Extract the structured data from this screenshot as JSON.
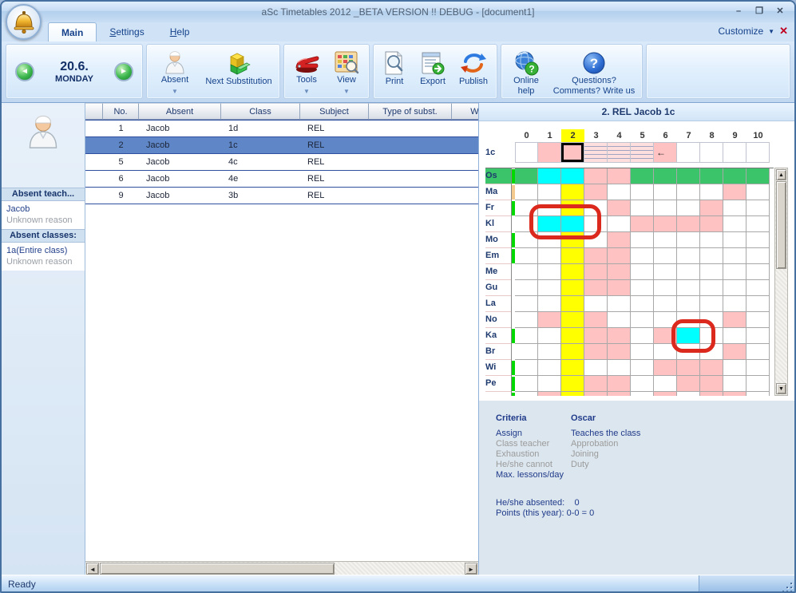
{
  "window": {
    "title": "aSc Timetables 2012 _BETA VERSION !! DEBUG - [document1]",
    "controls": {
      "minimize": "–",
      "maximize": "❐",
      "close": "✕"
    }
  },
  "tabs": {
    "items": [
      {
        "label": "Main",
        "active": true
      },
      {
        "label": "Settings",
        "active": false
      },
      {
        "label": "Help",
        "active": false
      }
    ],
    "customize_label": "Customize",
    "close_label": "✕"
  },
  "ribbon": {
    "date": {
      "day": "20.6.",
      "weekday": "MONDAY"
    },
    "buttons": [
      {
        "label": "Absent",
        "icon": "absent-person-icon",
        "caret": true
      },
      {
        "label": "Next Substitution",
        "icon": "next-substitution-blocks-icon",
        "caret": false
      },
      {
        "label": "Tools",
        "icon": "stapler-icon",
        "caret": true
      },
      {
        "label": "View",
        "icon": "calendar-magnifier-icon",
        "caret": true
      },
      {
        "label": "Print",
        "icon": "print-preview-icon",
        "caret": false
      },
      {
        "label": "Export",
        "icon": "export-icon",
        "caret": false
      },
      {
        "label": "Publish",
        "icon": "publish-sync-icon",
        "caret": false
      },
      {
        "label": "Online help",
        "icon": "globe-help-icon",
        "caret": false
      },
      {
        "label": "Questions? Comments? Write us",
        "icon": "question-icon",
        "caret": false
      }
    ]
  },
  "sidebar": {
    "teachers_header": "Absent teach...",
    "teacher_name": "Jacob",
    "teacher_reason": "Unknown reason",
    "classes_header": "Absent classes:",
    "class_name": "1a(Entire class)",
    "class_reason": "Unknown reason"
  },
  "table": {
    "columns": [
      "",
      "No.",
      "Absent",
      "Class",
      "Subject",
      "Type of subst.",
      "Who"
    ],
    "selected_index": 1,
    "rows": [
      {
        "no": "1",
        "absent": "Jacob",
        "class": "1d",
        "subject": "REL",
        "type": "",
        "who": ""
      },
      {
        "no": "2",
        "absent": "Jacob",
        "class": "1c",
        "subject": "REL",
        "type": "",
        "who": ""
      },
      {
        "no": "5",
        "absent": "Jacob",
        "class": "4c",
        "subject": "REL",
        "type": "",
        "who": ""
      },
      {
        "no": "6",
        "absent": "Jacob",
        "class": "4e",
        "subject": "REL",
        "type": "",
        "who": ""
      },
      {
        "no": "9",
        "absent": "Jacob",
        "class": "3b",
        "subject": "REL",
        "type": "",
        "who": ""
      }
    ]
  },
  "panel": {
    "title": "2. REL Jacob 1c",
    "hours": [
      "0",
      "1",
      "2",
      "3",
      "4",
      "5",
      "6",
      "7",
      "8",
      "9",
      "10"
    ],
    "selected_hour": "2",
    "target_label": "1c",
    "target_cells": [
      "W",
      "P",
      "SEL",
      "S",
      "S",
      "S",
      "A",
      "W",
      "W",
      "W",
      "W"
    ],
    "arrow_glyph": "←",
    "grid": {
      "legend": {
        "W": "free",
        "P": "busy",
        "C": "suggested",
        "Y": "current-hour",
        "G": "available-all-day"
      },
      "rows": [
        {
          "label": "Os",
          "bar": "green",
          "label_bg": "green",
          "cells": [
            "G",
            "C",
            "C",
            "P",
            "P",
            "G",
            "G",
            "G",
            "G",
            "G",
            "G"
          ]
        },
        {
          "label": "Ma",
          "bar": "tan",
          "label_bg": null,
          "cells": [
            "W",
            "W",
            "Y",
            "P",
            "W",
            "W",
            "W",
            "W",
            "W",
            "P",
            "W"
          ]
        },
        {
          "label": "Fr",
          "bar": "green",
          "label_bg": null,
          "cells": [
            "W",
            "W",
            "Y",
            "W",
            "P",
            "W",
            "W",
            "W",
            "P",
            "W",
            "W"
          ]
        },
        {
          "label": "Kl",
          "bar": null,
          "label_bg": null,
          "cells": [
            "W",
            "C",
            "C",
            "W",
            "W",
            "P",
            "P",
            "P",
            "P",
            "W",
            "W"
          ]
        },
        {
          "label": "Mo",
          "bar": "green",
          "label_bg": null,
          "cells": [
            "W",
            "W",
            "Y",
            "W",
            "P",
            "W",
            "W",
            "W",
            "W",
            "W",
            "W"
          ]
        },
        {
          "label": "Em",
          "bar": "green",
          "label_bg": null,
          "cells": [
            "W",
            "W",
            "Y",
            "P",
            "P",
            "W",
            "W",
            "W",
            "W",
            "W",
            "W"
          ]
        },
        {
          "label": "Me",
          "bar": null,
          "label_bg": null,
          "cells": [
            "W",
            "W",
            "Y",
            "P",
            "P",
            "W",
            "W",
            "W",
            "W",
            "W",
            "W"
          ]
        },
        {
          "label": "Gu",
          "bar": null,
          "label_bg": null,
          "cells": [
            "W",
            "W",
            "Y",
            "P",
            "P",
            "W",
            "W",
            "W",
            "W",
            "W",
            "W"
          ]
        },
        {
          "label": "La",
          "bar": null,
          "label_bg": null,
          "cells": [
            "W",
            "W",
            "Y",
            "W",
            "W",
            "W",
            "W",
            "W",
            "W",
            "W",
            "W"
          ]
        },
        {
          "label": "No",
          "bar": null,
          "label_bg": null,
          "cells": [
            "W",
            "P",
            "Y",
            "P",
            "W",
            "W",
            "W",
            "W",
            "W",
            "P",
            "W"
          ]
        },
        {
          "label": "Ka",
          "bar": "green",
          "label_bg": null,
          "cells": [
            "W",
            "W",
            "Y",
            "P",
            "P",
            "W",
            "P",
            "C",
            "W",
            "W",
            "W"
          ]
        },
        {
          "label": "Br",
          "bar": null,
          "label_bg": null,
          "cells": [
            "W",
            "W",
            "Y",
            "P",
            "P",
            "W",
            "W",
            "W",
            "W",
            "P",
            "W"
          ]
        },
        {
          "label": "Wi",
          "bar": "green",
          "label_bg": null,
          "cells": [
            "W",
            "W",
            "Y",
            "W",
            "W",
            "W",
            "P",
            "P",
            "P",
            "W",
            "W"
          ]
        },
        {
          "label": "Pe",
          "bar": "green",
          "label_bg": null,
          "cells": [
            "W",
            "W",
            "Y",
            "P",
            "P",
            "W",
            "W",
            "P",
            "P",
            "W",
            "W"
          ]
        },
        {
          "label": "",
          "bar": "green",
          "label_bg": null,
          "cells": [
            "W",
            "P",
            "Y",
            "P",
            "P",
            "W",
            "P",
            "W",
            "P",
            "P",
            "W"
          ]
        }
      ]
    },
    "criteria": {
      "col1_header": "Criteria",
      "col2_header": "Oscar",
      "col1": [
        {
          "text": "Assign",
          "active": true
        },
        {
          "text": "Class teacher",
          "active": false
        },
        {
          "text": "Exhaustion",
          "active": false
        },
        {
          "text": "He/she cannot",
          "active": false
        },
        {
          "text": "Max. lessons/day",
          "active": true
        }
      ],
      "col2": [
        {
          "text": "Teaches the class",
          "active": true
        },
        {
          "text": "Approbation",
          "active": false
        },
        {
          "text": "Joining",
          "active": false
        },
        {
          "text": "Duty",
          "active": false
        }
      ]
    },
    "stats": {
      "absented_label": "He/she absented:",
      "absented_value": "0",
      "points_label": "Points (this year):",
      "points_value": "0-0 = 0"
    }
  },
  "status": {
    "ready": "Ready"
  },
  "colors": {
    "pink": "#FFC2C2",
    "cyan": "#00FFFF",
    "yellow": "#FFFF00",
    "green": "#3CC46A",
    "bar_green": "#00D800",
    "bar_tan": "#F4C98E",
    "annotation_red": "#DC291E",
    "selection_blue": "#5F87C7"
  }
}
